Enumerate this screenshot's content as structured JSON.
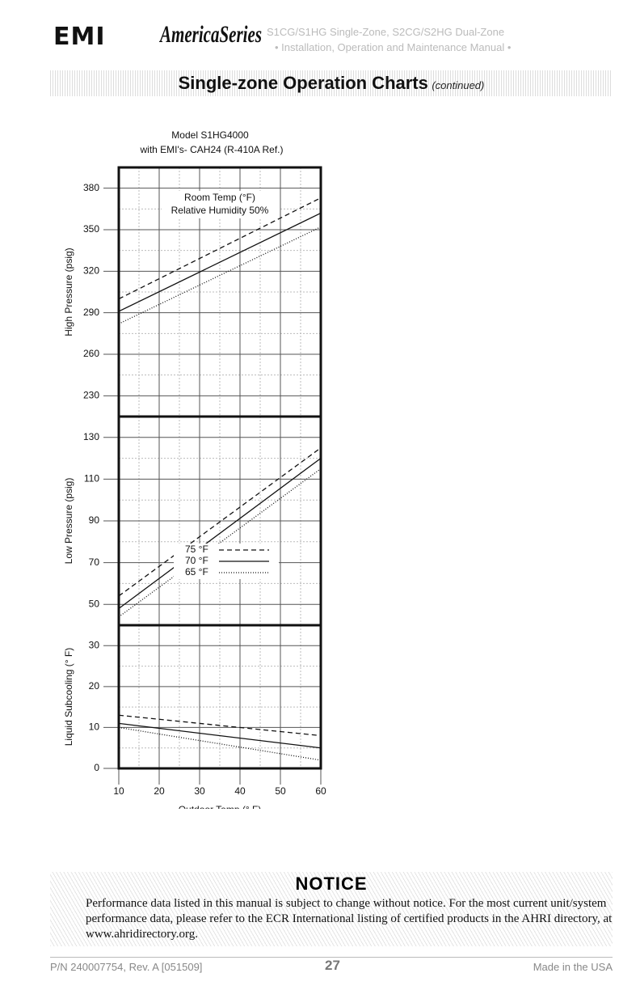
{
  "header": {
    "logo": "EMI",
    "series": "AmericaSeries",
    "line1": "S1CG/S1HG Single-Zone, S2CG/S2HG Dual-Zone",
    "line2": "• Installation, Operation and Maintenance Manual •"
  },
  "section": {
    "title": "Single-zone Operation Charts",
    "subtitle": "(continued)"
  },
  "chart_data": [
    {
      "type": "line",
      "title": "Model S1HG4000",
      "subtitle": "with EMI's- CAH24 (R-410A Ref.)",
      "annotations": [
        "Room Temp (°F)",
        "Relative Humidity 50%"
      ],
      "ylabel": "High Pressure (psig)",
      "x": [
        10,
        60
      ],
      "xlim": [
        10,
        60
      ],
      "xticks": [
        10,
        20,
        30,
        40,
        50,
        60
      ],
      "ylim": [
        215,
        395
      ],
      "yticks": [
        230,
        260,
        290,
        320,
        350,
        380
      ],
      "grid": true,
      "series": [
        {
          "color": "#111",
          "dash": "6 4",
          "values": [
            300,
            373
          ]
        },
        {
          "color": "#111",
          "dash": "none",
          "values": [
            291,
            362
          ]
        },
        {
          "color": "#111",
          "dash": "1 2",
          "values": [
            282,
            352
          ]
        }
      ]
    },
    {
      "type": "line",
      "ylabel": "Low Pressure (psig)",
      "x": [
        10,
        60
      ],
      "xlim": [
        10,
        60
      ],
      "xticks": [
        10,
        20,
        30,
        40,
        50,
        60
      ],
      "ylim": [
        40,
        140
      ],
      "yticks": [
        50,
        70,
        90,
        110,
        130
      ],
      "grid": true,
      "legend": "center",
      "series": [
        {
          "name": "75 °F",
          "color": "#111",
          "dash": "6 4",
          "values": [
            54,
            125
          ]
        },
        {
          "name": "70 °F",
          "color": "#111",
          "dash": "none",
          "values": [
            48,
            120
          ]
        },
        {
          "name": "65 °F",
          "color": "#111",
          "dash": "1 2",
          "values": [
            44,
            115
          ]
        }
      ]
    },
    {
      "type": "line",
      "ylabel": "Liquid Subcooling (° F)",
      "xlabel": "Outdoor Temp (° F)",
      "x": [
        10,
        60
      ],
      "xlim": [
        10,
        60
      ],
      "xticks": [
        10,
        20,
        30,
        40,
        50,
        60
      ],
      "ylim": [
        0,
        35
      ],
      "yticks": [
        0,
        10,
        20,
        30
      ],
      "grid": true,
      "series": [
        {
          "color": "#111",
          "dash": "6 4",
          "values": [
            13,
            8
          ]
        },
        {
          "color": "#111",
          "dash": "none",
          "values": [
            11,
            5
          ]
        },
        {
          "color": "#111",
          "dash": "1 2",
          "values": [
            10,
            2
          ]
        }
      ]
    }
  ],
  "notice": {
    "title": "NOTICE",
    "text": "Performance data listed in this manual is subject to change without notice. For the most current unit/system performance data, please refer to the ECR International listing of certified products in the AHRI directory, at www.ahridirectory.org."
  },
  "footer": {
    "pn": "P/N 240007754, Rev. A [051509]",
    "page": "27",
    "made": "Made in the USA"
  }
}
